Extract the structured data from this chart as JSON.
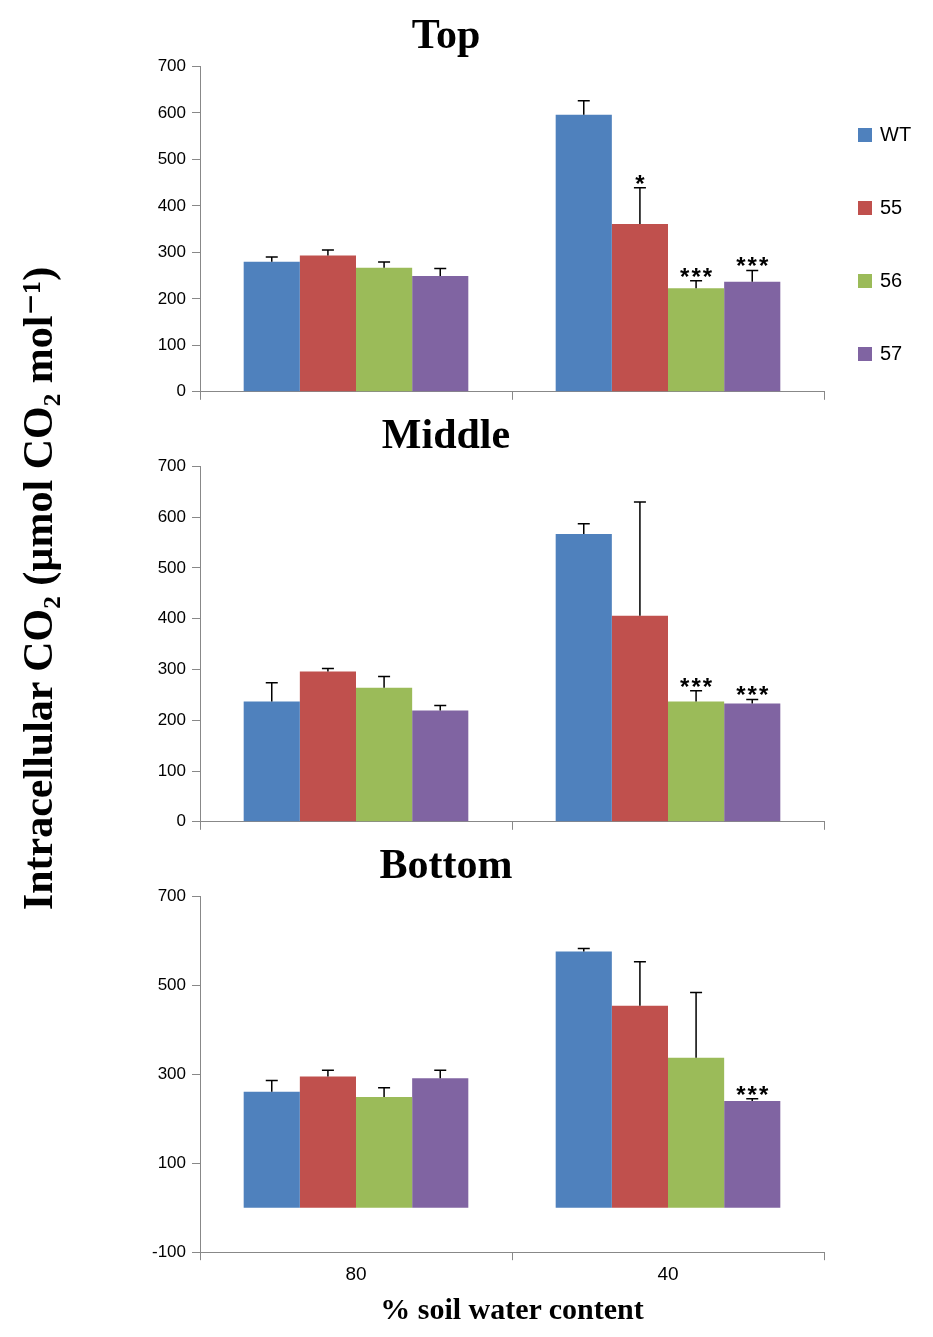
{
  "chart_data": [
    {
      "type": "bar",
      "title": "Top",
      "ylabel": "Intracellular CO₂ (µmol CO₂ mol⁻¹)",
      "categories": [
        "80",
        "40"
      ],
      "ylim": [
        0,
        700
      ],
      "yticks": [
        0,
        100,
        200,
        300,
        400,
        500,
        600,
        700
      ],
      "grid": false,
      "legend": "right",
      "tick_labels": "y",
      "series": [
        {
          "name": "WT",
          "color": "#4f81bd",
          "values": [
            280,
            596
          ],
          "errors": [
            10,
            30
          ]
        },
        {
          "name": "55",
          "color": "#c0504d",
          "values": [
            293,
            361
          ],
          "errors": [
            12,
            78
          ],
          "value_labels": [
            null,
            "*"
          ]
        },
        {
          "name": "56",
          "color": "#9bbb59",
          "values": [
            267,
            223
          ],
          "errors": [
            12,
            16
          ],
          "value_labels": [
            null,
            "***"
          ]
        },
        {
          "name": "57",
          "color": "#8064a2",
          "values": [
            249,
            237
          ],
          "errors": [
            16,
            24
          ],
          "value_labels": [
            null,
            "***"
          ]
        }
      ]
    },
    {
      "type": "bar",
      "title": "Middle",
      "categories": [
        "80",
        "40"
      ],
      "ylim": [
        0,
        700
      ],
      "yticks": [
        0,
        100,
        200,
        300,
        400,
        500,
        600,
        700
      ],
      "grid": false,
      "tick_labels": "y",
      "series": [
        {
          "color": "#4f81bd",
          "values": [
            237,
            567
          ],
          "errors": [
            37,
            20
          ]
        },
        {
          "color": "#c0504d",
          "values": [
            296,
            406
          ],
          "errors": [
            6,
            224
          ]
        },
        {
          "color": "#9bbb59",
          "values": [
            264,
            237
          ],
          "errors": [
            22,
            21
          ],
          "value_labels": [
            null,
            "***"
          ]
        },
        {
          "color": "#8064a2",
          "values": [
            219,
            233
          ],
          "errors": [
            10,
            8
          ],
          "value_labels": [
            null,
            "***"
          ]
        }
      ]
    },
    {
      "type": "bar",
      "title": "Bottom",
      "xlabel": "% soil water content",
      "categories": [
        "80",
        "40"
      ],
      "ylim": [
        -100,
        700
      ],
      "yticks": [
        -100,
        100,
        300,
        500,
        700
      ],
      "grid": false,
      "series": [
        {
          "color": "#4f81bd",
          "values": [
            261,
            576
          ],
          "errors": [
            25,
            7
          ]
        },
        {
          "color": "#c0504d",
          "values": [
            295,
            454
          ],
          "errors": [
            14,
            99
          ]
        },
        {
          "color": "#9bbb59",
          "values": [
            249,
            337
          ],
          "errors": [
            21,
            147
          ]
        },
        {
          "color": "#8064a2",
          "values": [
            291,
            240
          ],
          "errors": [
            18,
            5
          ],
          "value_labels": [
            null,
            "***"
          ]
        }
      ]
    }
  ]
}
